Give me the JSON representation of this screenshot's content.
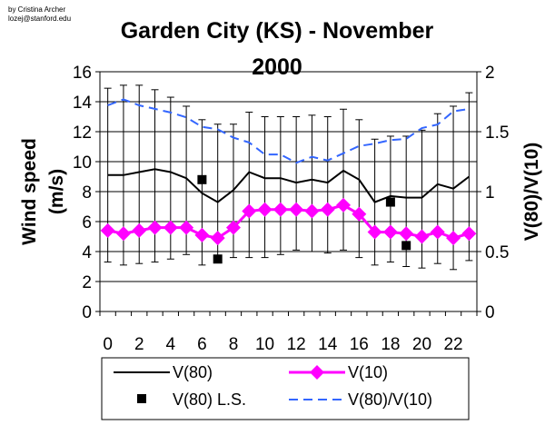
{
  "credit": [
    "by Cristina Archer",
    "lozej@stanford.edu"
  ],
  "chart_data": {
    "type": "line",
    "title_lines": [
      "Garden City (KS) - November",
      "2000"
    ],
    "ylabel_lines": [
      "Wind speed",
      "(m/s)"
    ],
    "y2label": "V(80)/V(10)",
    "x": [
      0,
      1,
      2,
      3,
      4,
      5,
      6,
      7,
      8,
      9,
      10,
      11,
      12,
      13,
      14,
      15,
      16,
      17,
      18,
      19,
      20,
      21,
      22,
      23
    ],
    "xticks": [
      0,
      2,
      4,
      6,
      8,
      10,
      12,
      14,
      16,
      18,
      20,
      22
    ],
    "xlim": [
      -0.5,
      23.5
    ],
    "ylim": [
      0,
      16
    ],
    "yticks": [
      0,
      2,
      4,
      6,
      8,
      10,
      12,
      14,
      16
    ],
    "y2lim": [
      0,
      2
    ],
    "y2ticks": [
      "0",
      "0.5",
      "1",
      "1.5",
      "2"
    ],
    "y2tick_values": [
      0,
      0.5,
      1,
      1.5,
      2
    ],
    "grid": "horizontal",
    "legend": "bottom",
    "series": [
      {
        "name": "V(80)",
        "axis": "left",
        "style": "solid",
        "color": "#000000",
        "values": [
          9.1,
          9.1,
          9.3,
          9.5,
          9.3,
          8.9,
          7.9,
          7.3,
          8.1,
          9.3,
          8.9,
          8.9,
          8.6,
          8.8,
          8.6,
          9.4,
          8.8,
          7.3,
          7.7,
          7.6,
          7.6,
          8.5,
          8.2,
          9.0
        ],
        "error_low": [
          3.3,
          3.1,
          3.2,
          3.3,
          3.5,
          3.8,
          3.1,
          3.3,
          3.6,
          3.6,
          3.6,
          3.8,
          4.1,
          4.0,
          3.9,
          4.1,
          3.6,
          3.1,
          3.3,
          3.0,
          2.9,
          3.2,
          2.8,
          3.4
        ],
        "error_high": [
          14.9,
          15.1,
          15.1,
          14.8,
          14.3,
          13.7,
          12.8,
          12.5,
          12.5,
          13.3,
          13.0,
          13.0,
          13.0,
          13.1,
          13.0,
          13.5,
          12.8,
          11.5,
          11.7,
          11.7,
          12.1,
          13.2,
          13.7,
          14.6
        ]
      },
      {
        "name": "V(10)",
        "axis": "left",
        "style": "diamond",
        "color": "#ff00ff",
        "values": [
          5.4,
          5.2,
          5.4,
          5.6,
          5.6,
          5.6,
          5.1,
          4.9,
          5.6,
          6.7,
          6.8,
          6.8,
          6.8,
          6.7,
          6.8,
          7.1,
          6.5,
          5.3,
          5.3,
          5.2,
          5.0,
          5.3,
          4.9,
          5.2
        ]
      },
      {
        "name": "V(80) L.S.",
        "axis": "left",
        "style": "square",
        "color": "#000000",
        "x": [
          6,
          7,
          18,
          19
        ],
        "values": [
          8.8,
          3.5,
          7.3,
          4.4
        ]
      },
      {
        "name": "V(80)/V(10)",
        "axis": "right",
        "style": "dashed",
        "color": "#3366ff",
        "values": [
          1.72,
          1.77,
          1.72,
          1.69,
          1.66,
          1.62,
          1.54,
          1.52,
          1.45,
          1.41,
          1.31,
          1.31,
          1.24,
          1.29,
          1.26,
          1.32,
          1.38,
          1.4,
          1.43,
          1.44,
          1.53,
          1.56,
          1.67,
          1.69
        ]
      }
    ]
  }
}
